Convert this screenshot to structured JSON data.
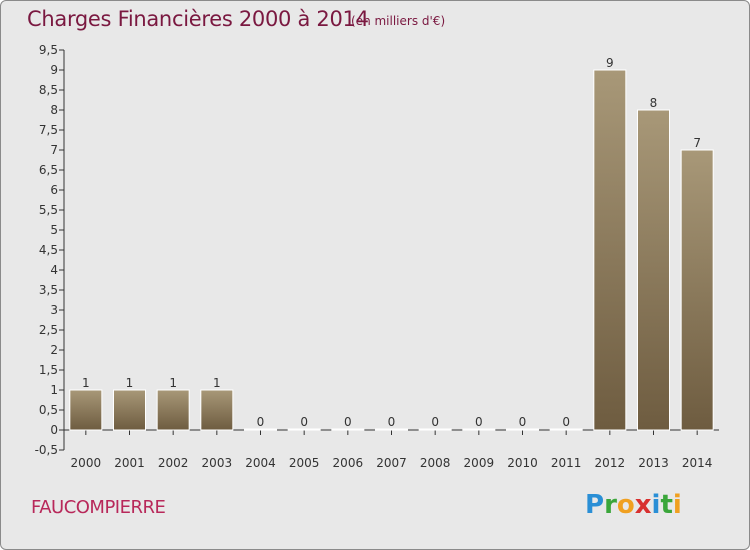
{
  "header": {
    "title": "Charges Financières 2000 à 2014",
    "subtitle": "(en milliers d'€)"
  },
  "footer": {
    "commune": "FAUCOMPIERRE",
    "brand": "Proxiti",
    "brand_letters": [
      {
        "ch": "P",
        "color": "#2a8fd6"
      },
      {
        "ch": "r",
        "color": "#3aa63a"
      },
      {
        "ch": "o",
        "color": "#f0a020"
      },
      {
        "ch": "x",
        "color": "#d8302f"
      },
      {
        "ch": "i",
        "color": "#2a8fd6"
      },
      {
        "ch": "t",
        "color": "#3aa63a"
      },
      {
        "ch": "i",
        "color": "#f0a020"
      }
    ]
  },
  "chart_data": {
    "type": "bar",
    "title": "Charges Financières 2000 à 2014",
    "subtitle": "(en milliers d'€)",
    "categories": [
      "2000",
      "2001",
      "2002",
      "2003",
      "2004",
      "2005",
      "2006",
      "2007",
      "2008",
      "2009",
      "2010",
      "2011",
      "2012",
      "2013",
      "2014"
    ],
    "values": [
      1,
      1,
      1,
      1,
      0,
      0,
      0,
      0,
      0,
      0,
      0,
      0,
      9,
      8,
      7
    ],
    "data_labels": [
      "1",
      "1",
      "1",
      "1",
      "0",
      "0",
      "0",
      "0",
      "0",
      "0",
      "0",
      "0",
      "9",
      "8",
      "7"
    ],
    "ylim": [
      -0.5,
      9.5
    ],
    "yticks": [
      "-0,5",
      "0",
      "0,5",
      "1",
      "1,5",
      "2",
      "2,5",
      "3",
      "3,5",
      "4",
      "4,5",
      "5",
      "5,5",
      "6",
      "6,5",
      "7",
      "7,5",
      "8",
      "8,5",
      "9",
      "9,5"
    ],
    "ytick_values": [
      -0.5,
      0,
      0.5,
      1,
      1.5,
      2,
      2.5,
      3,
      3.5,
      4,
      4.5,
      5,
      5.5,
      6,
      6.5,
      7,
      7.5,
      8,
      8.5,
      9,
      9.5
    ],
    "xlabel": "",
    "ylabel": "",
    "grid": false,
    "colors": {
      "bar_top": "#a89878",
      "bar_bottom": "#6e5c40",
      "bar_edge": "#ffffff",
      "axis": "#333333",
      "background": "#e8e8e8",
      "title": "#7a1840"
    }
  }
}
